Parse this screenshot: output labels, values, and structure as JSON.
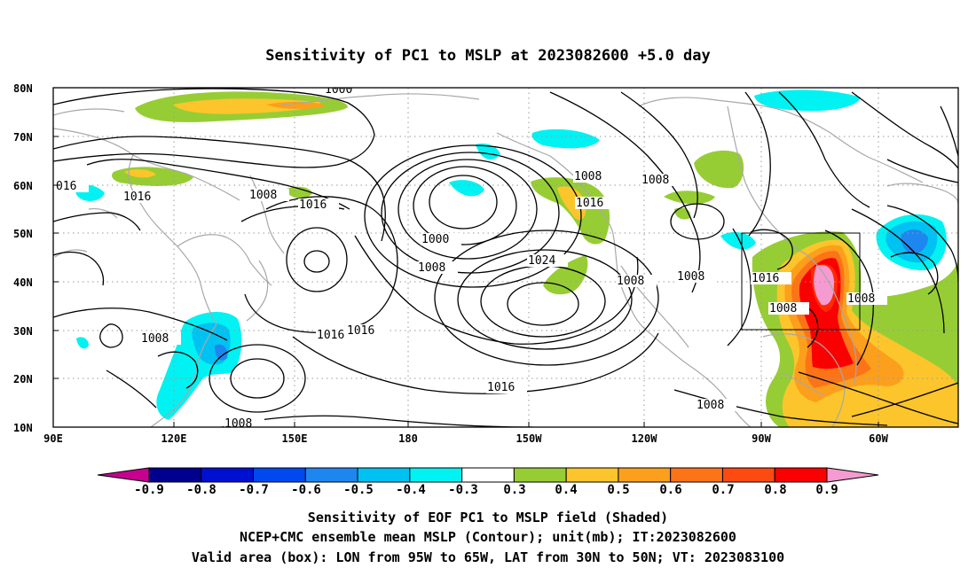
{
  "title": "Sensitivity of PC1 to MSLP at 2023082600 +5.0 day",
  "lat_labels": [
    "80N",
    "70N",
    "60N",
    "50N",
    "40N",
    "30N",
    "20N",
    "10N"
  ],
  "lon_labels": [
    "90E",
    "120E",
    "150E",
    "180",
    "150W",
    "120W",
    "90W",
    "60W"
  ],
  "contour_labels": [
    "1000",
    "016",
    "1016",
    "1008",
    "1016",
    "1000",
    "1008",
    "1008",
    "1016",
    "1024",
    "1008",
    "1008",
    "1008",
    "1016",
    "1008",
    "1008",
    "1016",
    "1016",
    "1008",
    "1016",
    "1008",
    "1008",
    "1008"
  ],
  "colorbar": {
    "labels": [
      "-0.9",
      "-0.8",
      "-0.7",
      "-0.6",
      "-0.5",
      "-0.4",
      "-0.3",
      "0.3",
      "0.4",
      "0.5",
      "0.6",
      "0.7",
      "0.8",
      "0.9"
    ],
    "colors": [
      "#c7008f",
      "#00008f",
      "#0010d0",
      "#0048f0",
      "#1e86ef",
      "#00c2f2",
      "#00f2f2",
      "#ffffff",
      "#97cd34",
      "#fcc52b",
      "#fc9f1d",
      "#fc7417",
      "#fc4a10",
      "#fb0000",
      "#f59bd1"
    ]
  },
  "caption": {
    "line1": "Sensitivity of EOF PC1 to MSLP field (Shaded)",
    "line2": "NCEP+CMC ensemble mean MSLP (Contour); unit(mb); IT:2023082600",
    "line3": "Valid area (box): LON from 95W to 65W, LAT from 30N to 50N; VT: 2023083100"
  }
}
